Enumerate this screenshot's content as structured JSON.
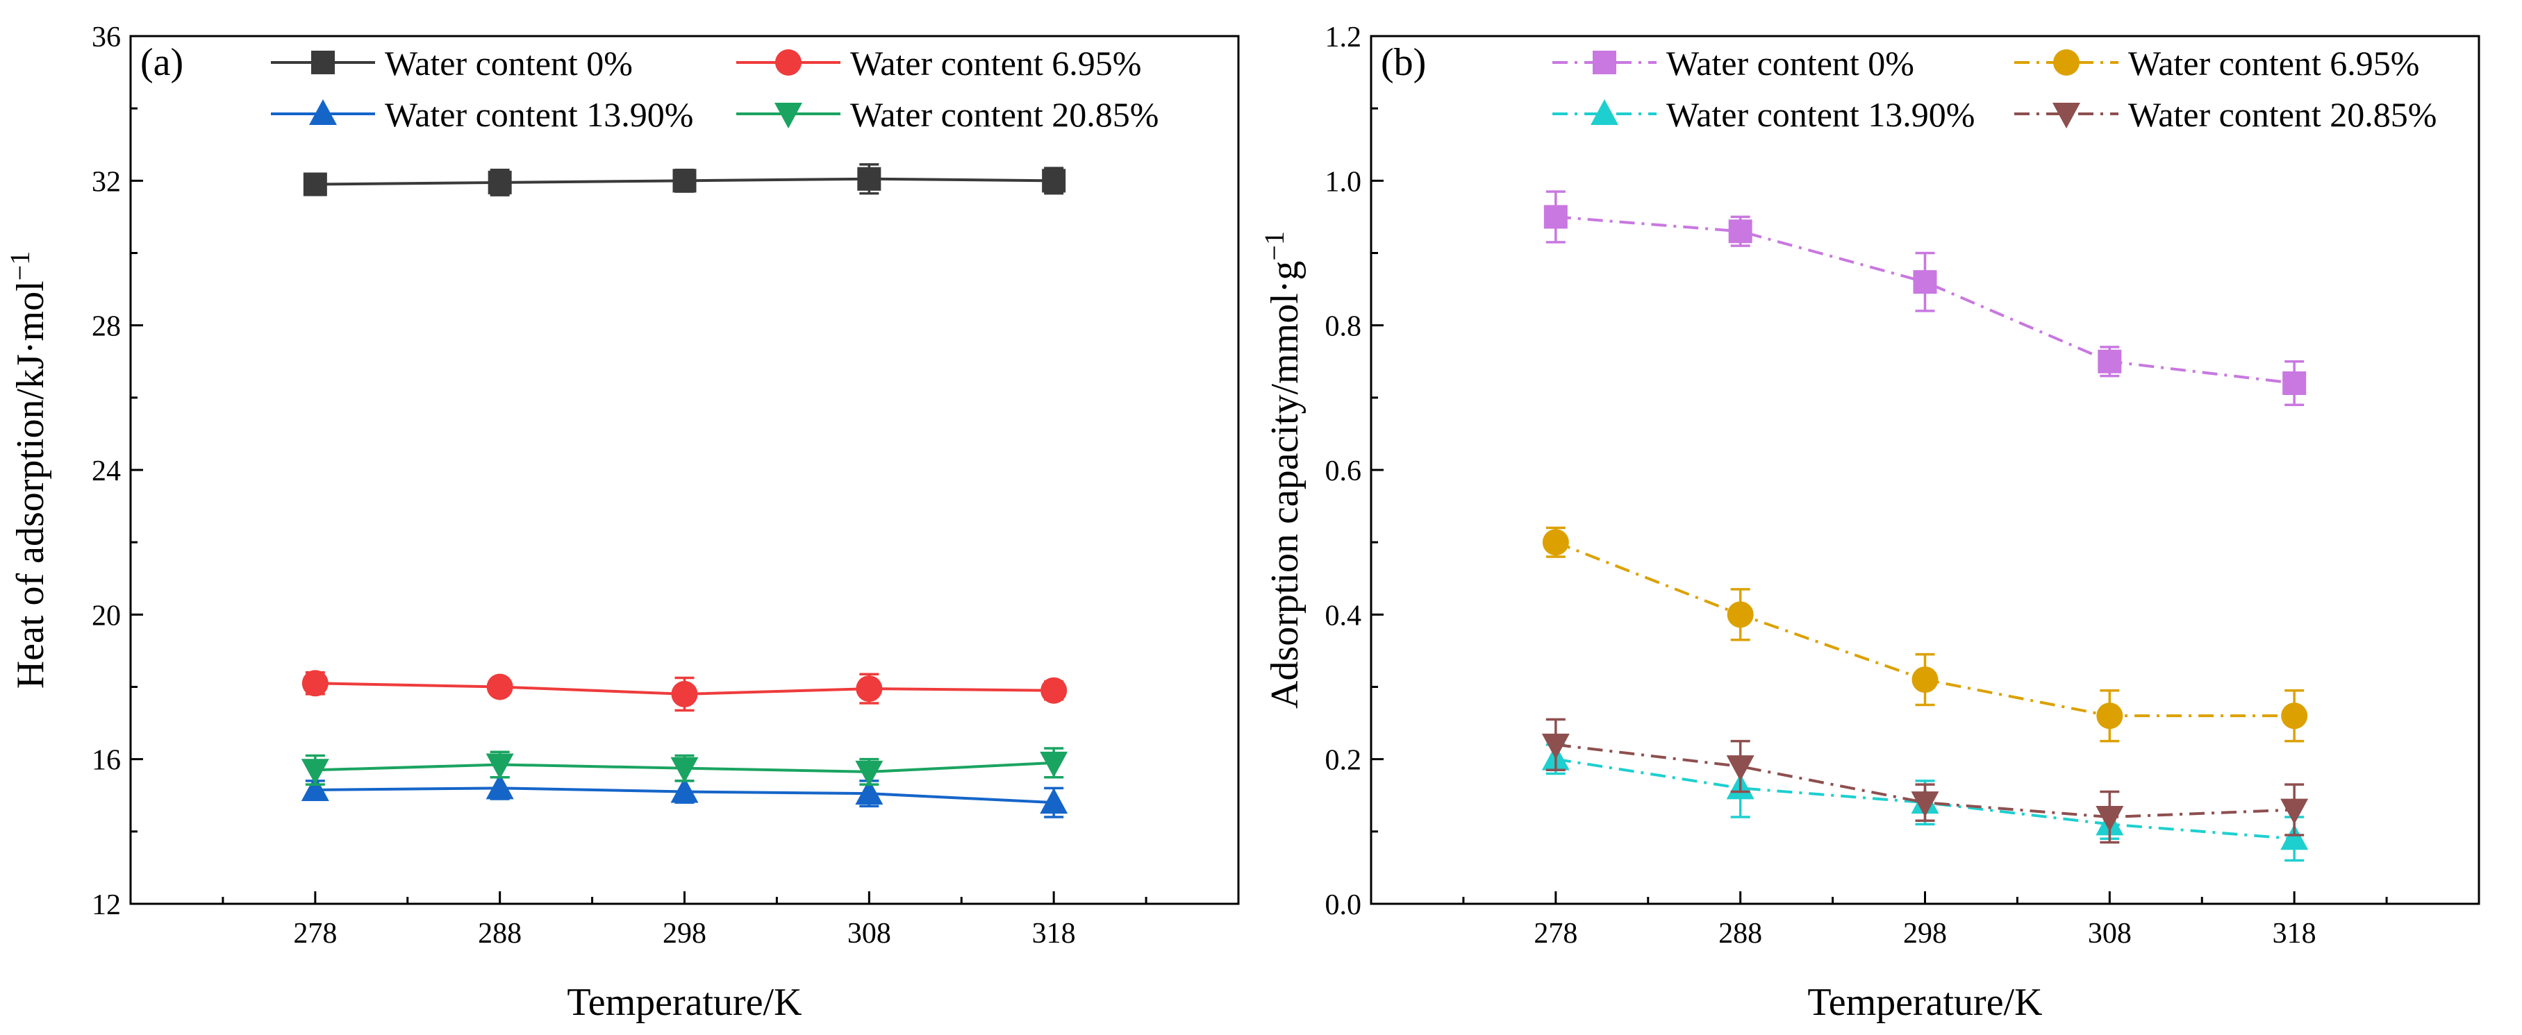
{
  "chart_data": [
    {
      "type": "line",
      "panel_label": "(a)",
      "xlabel": "Temperature/K",
      "ylabel": "Heat of adsorption/kJ·mol",
      "ylabel_sup": "−1",
      "x": [
        278,
        288,
        298,
        308,
        318
      ],
      "xlim": [
        268,
        328
      ],
      "ylim": [
        12,
        36
      ],
      "yticks": [
        12,
        16,
        20,
        24,
        28,
        32,
        36
      ],
      "legend_position": "top",
      "series": [
        {
          "name": "Water content 0%",
          "marker": "square",
          "line": "solid",
          "color": "#3a3a3a",
          "values": [
            31.9,
            31.95,
            32.0,
            32.05,
            32.0
          ],
          "errors": [
            0.25,
            0.35,
            0.3,
            0.4,
            0.35
          ]
        },
        {
          "name": "Water content 6.95%",
          "marker": "circle",
          "line": "solid",
          "color": "#ef3b3b",
          "values": [
            18.1,
            18.0,
            17.8,
            17.95,
            17.9
          ],
          "errors": [
            0.3,
            0.2,
            0.45,
            0.4,
            0.25
          ]
        },
        {
          "name": "Water content 13.90%",
          "marker": "triangle-up",
          "line": "solid",
          "color": "#1565c9",
          "values": [
            15.15,
            15.2,
            15.1,
            15.05,
            14.8
          ],
          "errors": [
            0.25,
            0.3,
            0.3,
            0.35,
            0.4
          ]
        },
        {
          "name": "Water content 20.85%",
          "marker": "triangle-down",
          "line": "solid",
          "color": "#1aa461",
          "values": [
            15.7,
            15.85,
            15.75,
            15.65,
            15.9
          ],
          "errors": [
            0.4,
            0.35,
            0.35,
            0.35,
            0.4
          ]
        }
      ]
    },
    {
      "type": "line",
      "panel_label": "(b)",
      "xlabel": "Temperature/K",
      "ylabel": "Adsorption capacity/mmol·g",
      "ylabel_sup": "−1",
      "x": [
        278,
        288,
        298,
        308,
        318
      ],
      "xlim": [
        268,
        328
      ],
      "ylim": [
        0.0,
        1.2
      ],
      "yticks": [
        0.0,
        0.2,
        0.4,
        0.6,
        0.8,
        1.0,
        1.2
      ],
      "legend_position": "top",
      "series": [
        {
          "name": "Water content 0%",
          "marker": "square",
          "line": "dash-dot",
          "color": "#c878e0",
          "values": [
            0.95,
            0.93,
            0.86,
            0.75,
            0.72
          ],
          "errors": [
            0.035,
            0.02,
            0.04,
            0.02,
            0.03
          ]
        },
        {
          "name": "Water content 6.95%",
          "marker": "circle",
          "line": "dash-dot",
          "color": "#dca100",
          "values": [
            0.5,
            0.4,
            0.31,
            0.26,
            0.26
          ],
          "errors": [
            0.02,
            0.035,
            0.035,
            0.035,
            0.035
          ]
        },
        {
          "name": "Water content 13.90%",
          "marker": "triangle-up",
          "line": "dash-dot",
          "color": "#1ecfcf",
          "values": [
            0.2,
            0.16,
            0.14,
            0.11,
            0.09
          ],
          "errors": [
            0.02,
            0.04,
            0.03,
            0.02,
            0.03
          ]
        },
        {
          "name": "Water content 20.85%",
          "marker": "triangle-down",
          "line": "dash-dot",
          "color": "#8e4f4f",
          "values": [
            0.22,
            0.19,
            0.14,
            0.12,
            0.13
          ],
          "errors": [
            0.035,
            0.035,
            0.025,
            0.035,
            0.035
          ]
        }
      ]
    }
  ]
}
